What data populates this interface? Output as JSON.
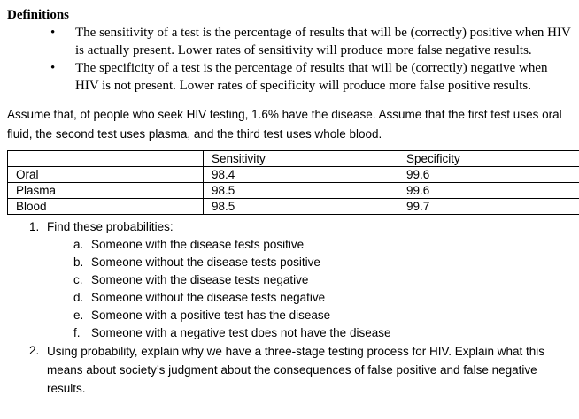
{
  "document": {
    "definitions": {
      "heading": "Definitions",
      "bullets": [
        "The sensitivity of a test is the percentage of results that will be (correctly) positive when HIV is actually present. Lower rates of sensitivity will produce more false negative results.",
        "The specificity of a test is the percentage of results that will be (correctly) negative when HIV is not present. Lower rates of specificity will produce more false positive results."
      ]
    },
    "intro": "Assume that, of people who seek HIV testing, 1.6% have the disease. Assume that the first test uses oral fluid, the second test uses plasma, and the third test uses whole blood.",
    "table": {
      "headers": [
        "",
        "Sensitivity",
        "Specificity"
      ],
      "rows": [
        {
          "label": "Oral",
          "sensitivity": "98.4",
          "specificity": "99.6"
        },
        {
          "label": "Plasma",
          "sensitivity": "98.5",
          "specificity": "99.6"
        },
        {
          "label": "Blood",
          "sensitivity": "98.5",
          "specificity": "99.7"
        }
      ]
    },
    "questions": [
      {
        "number": "1.",
        "text": "Find these probabilities:",
        "subitems": [
          {
            "marker": "a.",
            "text": "Someone with the disease tests positive"
          },
          {
            "marker": "b.",
            "text": "Someone without the disease tests positive"
          },
          {
            "marker": "c.",
            "text": "Someone with the disease tests negative"
          },
          {
            "marker": "d.",
            "text": "Someone without the disease tests negative"
          },
          {
            "marker": "e.",
            "text": "Someone with a positive test has the disease"
          },
          {
            "marker": "f.",
            "text": "Someone with a negative test does not have the disease"
          }
        ]
      },
      {
        "number": "2.",
        "text": "Using probability, explain why we have a three-stage testing process for HIV. Explain what this means about society’s judgment about the consequences of false positive and false negative results."
      }
    ]
  }
}
